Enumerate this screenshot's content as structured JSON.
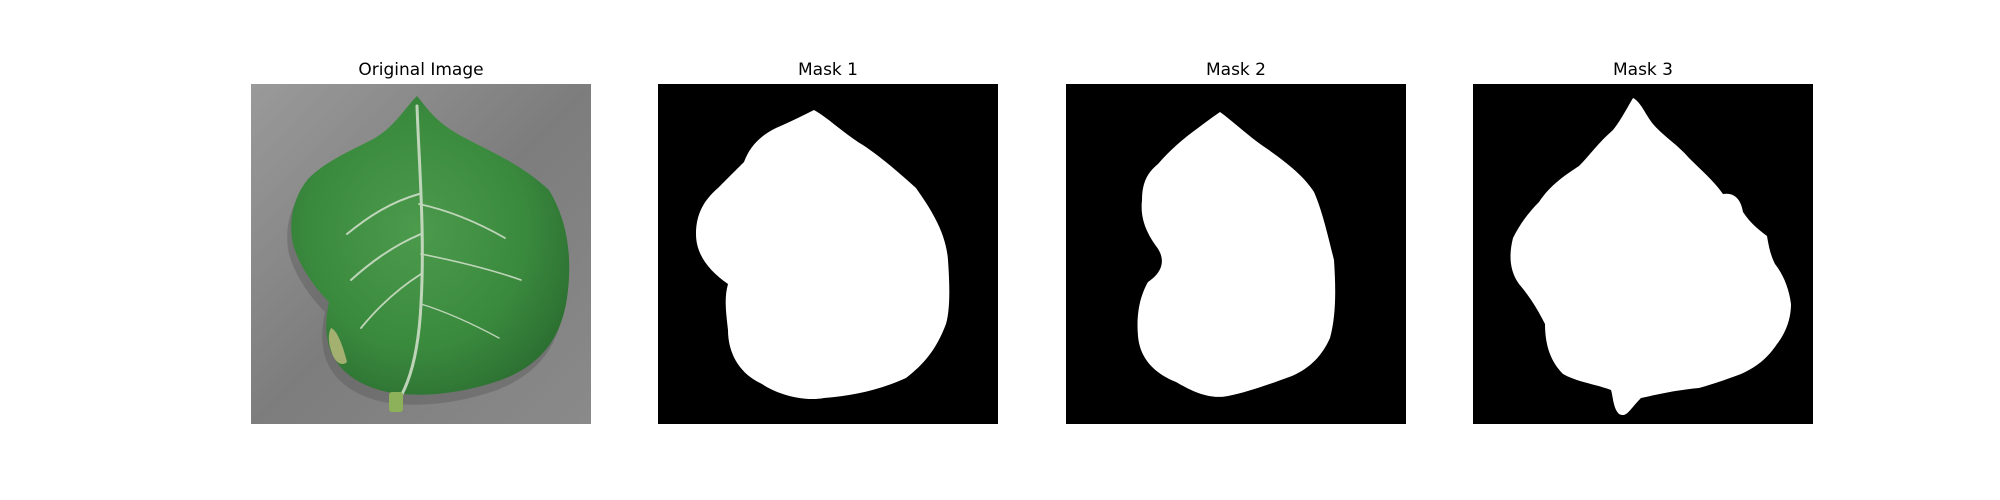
{
  "figure": {
    "panels": [
      {
        "title": "Original Image",
        "kind": "photo",
        "subject": "leaf-photo"
      },
      {
        "title": "Mask 1",
        "kind": "mask"
      },
      {
        "title": "Mask 2",
        "kind": "mask"
      },
      {
        "title": "Mask 3",
        "kind": "mask"
      }
    ]
  },
  "colors": {
    "background": "#ffffff",
    "mask_background": "#000000",
    "mask_foreground": "#ffffff",
    "photo_background": "#8f8f8f",
    "leaf_green": "#3c8a3f",
    "leaf_dark_green": "#2a6b2f",
    "vein": "#d9e3d2"
  }
}
